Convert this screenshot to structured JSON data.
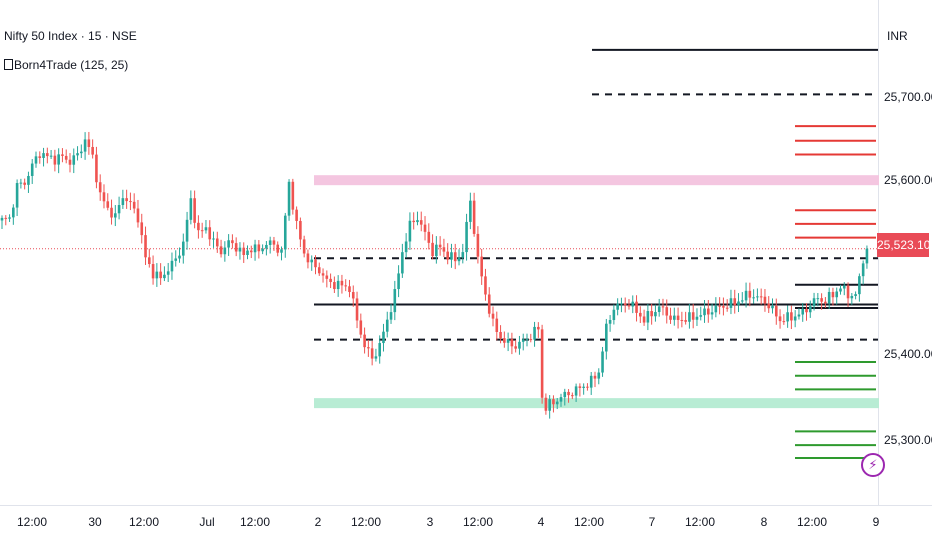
{
  "legend": {
    "title": "Nifty 50 Index · 15 · NSE",
    "indicator": "Born4Trade (125, 25)"
  },
  "price_scale": {
    "currency": "INR",
    "current_price": "25,523.10",
    "labels": [
      "25,700.00",
      "25,600.00",
      "25,400.00",
      "25,300.00"
    ]
  },
  "time_axis": {
    "labels": [
      "12:00",
      "30",
      "12:00",
      "Jul",
      "12:00",
      "2",
      "12:00",
      "3",
      "12:00",
      "4",
      "12:00",
      "7",
      "12:00",
      "8",
      "12:00",
      "9"
    ]
  },
  "colors": {
    "up": "#26a69a",
    "down": "#ef5350",
    "supply_zone": "#f4c6e0",
    "demand_zone": "#b8ecd4",
    "level_line": "#131722",
    "resistance_ticks": "#e53935",
    "support_ticks": "#2e9a2e",
    "current_price": "#e94b57",
    "alert": "#9c27b0"
  },
  "alert_icon": "lightning-icon",
  "chart_data": {
    "type": "candlestick",
    "title": "Nifty 50 Index · 15 · NSE",
    "indicator": "Born4Trade (125, 25)",
    "y_unit": "INR",
    "ylim": [
      25245,
      25790
    ],
    "y_ticks": [
      25700,
      25600,
      25400,
      25300
    ],
    "x_tick_labels": [
      "12:00",
      "30",
      "12:00",
      "Jul",
      "12:00",
      "2",
      "12:00",
      "3",
      "12:00",
      "4",
      "12:00",
      "7",
      "12:00",
      "8",
      "12:00",
      "9"
    ],
    "last_price": 25523.1,
    "levels": [
      {
        "price": 25755,
        "style": "solid"
      },
      {
        "price": 25703,
        "style": "dashed"
      },
      {
        "price": 25512,
        "style": "dashed"
      },
      {
        "price": 25458,
        "style": "solid"
      },
      {
        "price": 25417,
        "style": "dashed"
      }
    ],
    "zones": [
      {
        "type": "supply",
        "price": 25603
      },
      {
        "type": "demand",
        "price": 25343
      }
    ],
    "resistance_ticks": [
      25666,
      25649,
      25633,
      25568,
      25552,
      25536
    ],
    "support_ticks": [
      25391,
      25375,
      25359,
      25310,
      25294,
      25279
    ],
    "right_levels": [
      25481,
      25454
    ],
    "waypoints": [
      [
        0,
        25556
      ],
      [
        2,
        25558
      ],
      [
        4,
        25596
      ],
      [
        6,
        25600
      ],
      [
        8,
        25620
      ],
      [
        10,
        25635
      ],
      [
        12,
        25630
      ],
      [
        14,
        25628
      ],
      [
        16,
        25630
      ],
      [
        18,
        25625
      ],
      [
        20,
        25632
      ],
      [
        22,
        25650
      ],
      [
        24,
        25630
      ],
      [
        26,
        25585
      ],
      [
        28,
        25570
      ],
      [
        30,
        25560
      ],
      [
        32,
        25585
      ],
      [
        34,
        25575
      ],
      [
        36,
        25560
      ],
      [
        38,
        25512
      ],
      [
        40,
        25495
      ],
      [
        42,
        25488
      ],
      [
        44,
        25500
      ],
      [
        46,
        25510
      ],
      [
        48,
        25530
      ],
      [
        50,
        25580
      ],
      [
        52,
        25540
      ],
      [
        54,
        25548
      ],
      [
        56,
        25530
      ],
      [
        58,
        25520
      ],
      [
        60,
        25530
      ],
      [
        62,
        25526
      ],
      [
        64,
        25515
      ],
      [
        66,
        25525
      ],
      [
        68,
        25520
      ],
      [
        70,
        25530
      ],
      [
        72,
        25527
      ],
      [
        74,
        25520
      ],
      [
        76,
        25600
      ],
      [
        78,
        25550
      ],
      [
        80,
        25518
      ],
      [
        82,
        25505
      ],
      [
        84,
        25498
      ],
      [
        86,
        25485
      ],
      [
        88,
        25482
      ],
      [
        90,
        25480
      ],
      [
        92,
        25478
      ],
      [
        94,
        25440
      ],
      [
        96,
        25410
      ],
      [
        98,
        25395
      ],
      [
        100,
        25410
      ],
      [
        102,
        25440
      ],
      [
        104,
        25470
      ],
      [
        106,
        25520
      ],
      [
        108,
        25550
      ],
      [
        110,
        25560
      ],
      [
        112,
        25540
      ],
      [
        114,
        25520
      ],
      [
        116,
        25525
      ],
      [
        118,
        25515
      ],
      [
        120,
        25510
      ],
      [
        122,
        25520
      ],
      [
        124,
        25580
      ],
      [
        126,
        25510
      ],
      [
        128,
        25470
      ],
      [
        130,
        25435
      ],
      [
        132,
        25420
      ],
      [
        134,
        25412
      ],
      [
        136,
        25410
      ],
      [
        138,
        25415
      ],
      [
        140,
        25422
      ],
      [
        142,
        25430
      ],
      [
        143,
        25350
      ],
      [
        144,
        25338
      ],
      [
        148,
        25350
      ],
      [
        152,
        25358
      ],
      [
        156,
        25368
      ],
      [
        158,
        25380
      ],
      [
        160,
        25430
      ],
      [
        162,
        25455
      ],
      [
        166,
        25460
      ],
      [
        170,
        25440
      ],
      [
        174,
        25455
      ],
      [
        178,
        25440
      ],
      [
        182,
        25442
      ],
      [
        186,
        25448
      ],
      [
        190,
        25455
      ],
      [
        194,
        25460
      ],
      [
        198,
        25470
      ],
      [
        202,
        25462
      ],
      [
        206,
        25440
      ],
      [
        208,
        25442
      ],
      [
        212,
        25448
      ],
      [
        214,
        25458
      ],
      [
        216,
        25465
      ],
      [
        218,
        25462
      ],
      [
        220,
        25470
      ],
      [
        222,
        25478
      ],
      [
        224,
        25470
      ],
      [
        226,
        25468
      ],
      [
        229,
        25530
      ]
    ]
  }
}
